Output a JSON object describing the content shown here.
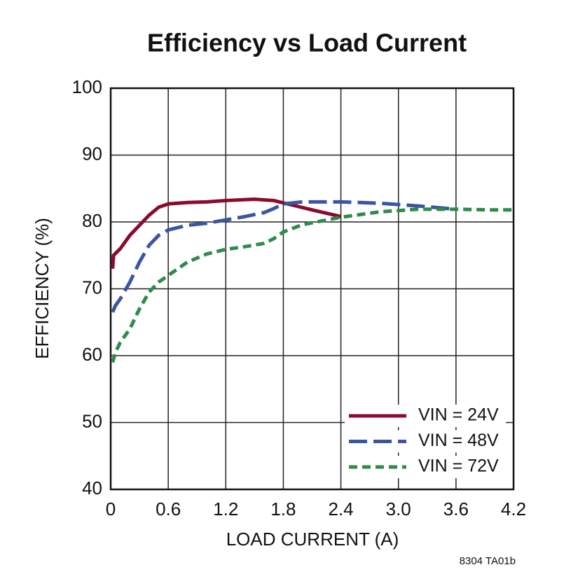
{
  "chart_data": {
    "type": "line",
    "title": "Efficiency vs Load Current",
    "xlabel": "LOAD CURRENT (A)",
    "ylabel": "EFFICIENCY (%)",
    "annotation": "8304 TA01b",
    "xlim": [
      0,
      4.2
    ],
    "ylim": [
      40,
      100
    ],
    "xticks": [
      0,
      0.6,
      1.2,
      1.8,
      2.4,
      {
        "value": 3,
        "label": "3.0"
      },
      3.6,
      4.2
    ],
    "yticks": [
      40,
      50,
      60,
      70,
      80,
      90,
      100
    ],
    "grid": true,
    "series": [
      {
        "name": "VIN = 24V",
        "color": "#8b0a2e",
        "dash": "solid",
        "x": [
          0.02,
          0.03,
          0.1,
          0.2,
          0.3,
          0.4,
          0.5,
          0.6,
          0.8,
          1.0,
          1.2,
          1.5,
          1.7,
          1.9,
          2.1,
          2.4
        ],
        "values": [
          73,
          75,
          76,
          78,
          79.5,
          81,
          82.2,
          82.7,
          82.9,
          83,
          83.2,
          83.4,
          83.2,
          82.5,
          81.8,
          80.8
        ]
      },
      {
        "name": "VIN = 48V",
        "color": "#3a55a4",
        "dash": "long",
        "x": [
          0.02,
          0.05,
          0.1,
          0.2,
          0.3,
          0.4,
          0.5,
          0.6,
          0.8,
          1.0,
          1.2,
          1.4,
          1.6,
          1.7,
          1.8,
          2.0,
          2.4,
          2.8,
          3.2,
          3.6
        ],
        "values": [
          66.5,
          67.5,
          68.5,
          71,
          74,
          76.5,
          78,
          78.8,
          79.5,
          79.8,
          80.3,
          80.8,
          81.4,
          82,
          82.7,
          83,
          83,
          82.8,
          82.4,
          81.9
        ]
      },
      {
        "name": "VIN = 72V",
        "color": "#2e8b4a",
        "dash": "short",
        "x": [
          0.02,
          0.05,
          0.1,
          0.2,
          0.3,
          0.4,
          0.5,
          0.6,
          0.8,
          1.0,
          1.2,
          1.4,
          1.6,
          1.7,
          1.8,
          2.0,
          2.4,
          2.8,
          3.2,
          3.6,
          4.0,
          4.2
        ],
        "values": [
          59,
          60.5,
          62,
          64,
          67,
          69.5,
          71,
          72,
          74,
          75.2,
          75.9,
          76.3,
          76.8,
          77.5,
          78.5,
          79.6,
          80.7,
          81.5,
          81.9,
          81.9,
          81.8,
          81.8
        ]
      }
    ]
  }
}
